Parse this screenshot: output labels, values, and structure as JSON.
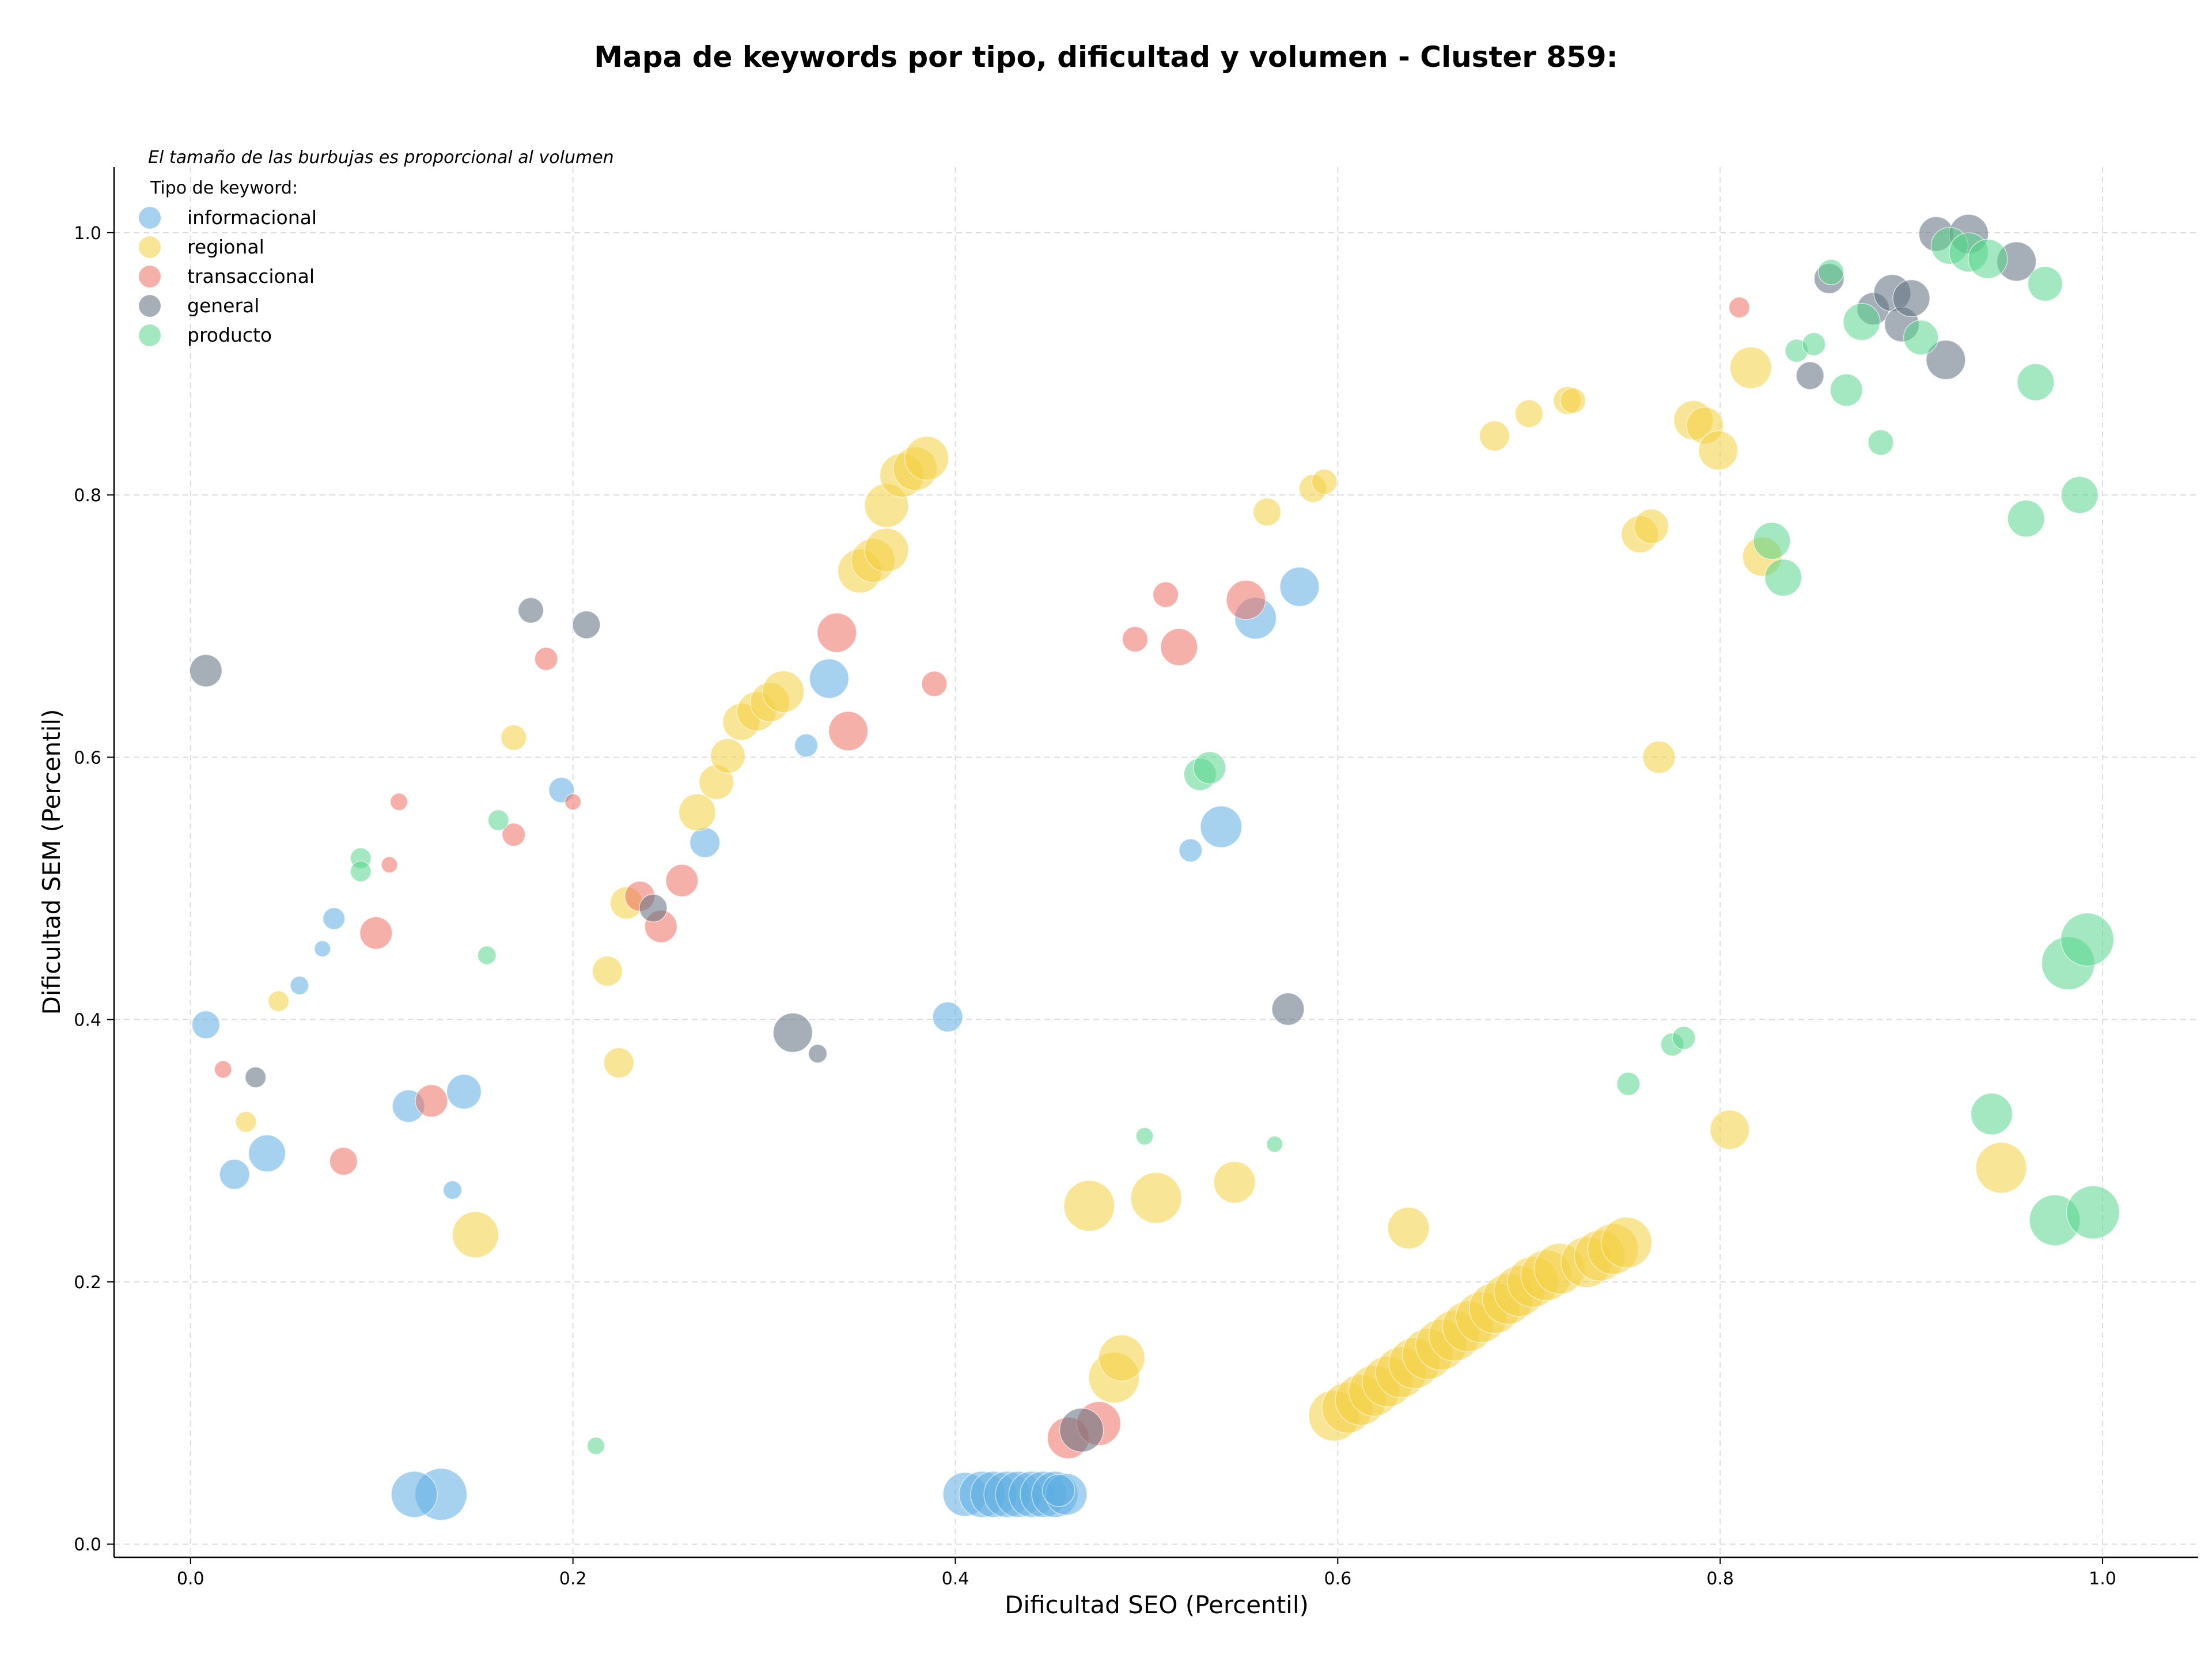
{
  "chart_data": {
    "type": "scatter",
    "title": "Mapa de keywords por tipo, dificultad y volumen - Cluster 859:",
    "xlabel": "Dificultad SEO (Percentil)",
    "ylabel": "Dificultad SEM (Percentil)",
    "xlim": [
      -0.04,
      1.05
    ],
    "ylim": [
      -0.01,
      1.05
    ],
    "xticks": [
      "0.0",
      "0.2",
      "0.4",
      "0.6",
      "0.8",
      "1.0"
    ],
    "yticks": [
      "0.0",
      "0.2",
      "0.4",
      "0.6",
      "0.8",
      "1.0"
    ],
    "grid": true,
    "legend_position": "top-left",
    "size_note": "El tamaño de las burbujas es proporcional al volumen",
    "legend_title": "Tipo de keyword:",
    "series": [
      {
        "name": "informacional",
        "color": "#5DADE2",
        "points": [
          [
            0.008,
            0.396,
            24
          ],
          [
            0.023,
            0.282,
            26
          ],
          [
            0.04,
            0.298,
            32
          ],
          [
            0.057,
            0.426,
            16
          ],
          [
            0.069,
            0.454,
            14
          ],
          [
            0.075,
            0.477,
            19
          ],
          [
            0.114,
            0.334,
            28
          ],
          [
            0.131,
            0.038,
            45
          ],
          [
            0.117,
            0.038,
            40
          ],
          [
            0.143,
            0.345,
            30
          ],
          [
            0.137,
            0.27,
            16
          ],
          [
            0.194,
            0.575,
            22
          ],
          [
            0.269,
            0.535,
            26
          ],
          [
            0.322,
            0.609,
            20
          ],
          [
            0.334,
            0.66,
            34
          ],
          [
            0.396,
            0.402,
            26
          ],
          [
            0.405,
            0.038,
            38
          ],
          [
            0.414,
            0.038,
            40
          ],
          [
            0.42,
            0.038,
            40
          ],
          [
            0.427,
            0.038,
            40
          ],
          [
            0.433,
            0.038,
            40
          ],
          [
            0.44,
            0.038,
            40
          ],
          [
            0.446,
            0.038,
            40
          ],
          [
            0.452,
            0.038,
            40
          ],
          [
            0.458,
            0.038,
            36
          ],
          [
            0.454,
            0.041,
            28
          ],
          [
            0.523,
            0.529,
            20
          ],
          [
            0.539,
            0.547,
            36
          ],
          [
            0.557,
            0.706,
            36
          ],
          [
            0.58,
            0.73,
            34
          ]
        ]
      },
      {
        "name": "regional",
        "color": "#F4D03F",
        "points": [
          [
            0.029,
            0.322,
            18
          ],
          [
            0.046,
            0.414,
            18
          ],
          [
            0.149,
            0.236,
            40
          ],
          [
            0.169,
            0.615,
            22
          ],
          [
            0.218,
            0.437,
            26
          ],
          [
            0.224,
            0.367,
            26
          ],
          [
            0.228,
            0.489,
            28
          ],
          [
            0.265,
            0.558,
            32
          ],
          [
            0.275,
            0.581,
            30
          ],
          [
            0.281,
            0.601,
            30
          ],
          [
            0.288,
            0.627,
            32
          ],
          [
            0.296,
            0.635,
            34
          ],
          [
            0.303,
            0.642,
            34
          ],
          [
            0.31,
            0.65,
            36
          ],
          [
            0.35,
            0.742,
            38
          ],
          [
            0.357,
            0.75,
            38
          ],
          [
            0.364,
            0.758,
            38
          ],
          [
            0.364,
            0.792,
            38
          ],
          [
            0.372,
            0.815,
            38
          ],
          [
            0.379,
            0.82,
            38
          ],
          [
            0.385,
            0.828,
            38
          ],
          [
            0.47,
            0.258,
            44
          ],
          [
            0.483,
            0.127,
            44
          ],
          [
            0.487,
            0.142,
            40
          ],
          [
            0.505,
            0.264,
            44
          ],
          [
            0.546,
            0.276,
            36
          ],
          [
            0.563,
            0.787,
            24
          ],
          [
            0.587,
            0.805,
            24
          ],
          [
            0.593,
            0.81,
            22
          ],
          [
            0.598,
            0.098,
            44
          ],
          [
            0.605,
            0.104,
            44
          ],
          [
            0.612,
            0.11,
            44
          ],
          [
            0.619,
            0.117,
            44
          ],
          [
            0.626,
            0.124,
            44
          ],
          [
            0.633,
            0.131,
            44
          ],
          [
            0.637,
            0.241,
            36
          ],
          [
            0.64,
            0.138,
            44
          ],
          [
            0.647,
            0.145,
            44
          ],
          [
            0.654,
            0.152,
            44
          ],
          [
            0.661,
            0.159,
            44
          ],
          [
            0.668,
            0.166,
            44
          ],
          [
            0.675,
            0.173,
            44
          ],
          [
            0.682,
            0.18,
            44
          ],
          [
            0.689,
            0.187,
            44
          ],
          [
            0.695,
            0.193,
            44
          ],
          [
            0.702,
            0.2,
            44
          ],
          [
            0.709,
            0.205,
            44
          ],
          [
            0.716,
            0.21,
            44
          ],
          [
            0.682,
            0.845,
            26
          ],
          [
            0.7,
            0.862,
            24
          ],
          [
            0.72,
            0.872,
            24
          ],
          [
            0.723,
            0.872,
            22
          ],
          [
            0.73,
            0.215,
            44
          ],
          [
            0.737,
            0.22,
            44
          ],
          [
            0.744,
            0.225,
            44
          ],
          [
            0.751,
            0.23,
            44
          ],
          [
            0.758,
            0.77,
            32
          ],
          [
            0.764,
            0.776,
            30
          ],
          [
            0.768,
            0.6,
            28
          ],
          [
            0.786,
            0.857,
            34
          ],
          [
            0.792,
            0.853,
            32
          ],
          [
            0.799,
            0.834,
            34
          ],
          [
            0.805,
            0.316,
            34
          ],
          [
            0.816,
            0.897,
            36
          ],
          [
            0.822,
            0.753,
            34
          ],
          [
            0.947,
            0.287,
            44
          ]
        ]
      },
      {
        "name": "transaccional",
        "color": "#EC7063",
        "points": [
          [
            0.017,
            0.362,
            15
          ],
          [
            0.08,
            0.292,
            24
          ],
          [
            0.097,
            0.466,
            28
          ],
          [
            0.104,
            0.518,
            14
          ],
          [
            0.109,
            0.566,
            15
          ],
          [
            0.126,
            0.338,
            28
          ],
          [
            0.169,
            0.541,
            20
          ],
          [
            0.186,
            0.675,
            20
          ],
          [
            0.2,
            0.566,
            14
          ],
          [
            0.235,
            0.494,
            26
          ],
          [
            0.246,
            0.471,
            28
          ],
          [
            0.257,
            0.506,
            28
          ],
          [
            0.338,
            0.695,
            34
          ],
          [
            0.344,
            0.62,
            34
          ],
          [
            0.389,
            0.656,
            22
          ],
          [
            0.459,
            0.081,
            36
          ],
          [
            0.475,
            0.092,
            38
          ],
          [
            0.494,
            0.69,
            22
          ],
          [
            0.51,
            0.724,
            22
          ],
          [
            0.517,
            0.684,
            32
          ],
          [
            0.552,
            0.72,
            34
          ],
          [
            0.81,
            0.943,
            18
          ]
        ]
      },
      {
        "name": "general",
        "color": "#5D6D7E",
        "points": [
          [
            0.008,
            0.666,
            28
          ],
          [
            0.034,
            0.356,
            18
          ],
          [
            0.178,
            0.712,
            22
          ],
          [
            0.207,
            0.701,
            24
          ],
          [
            0.242,
            0.485,
            24
          ],
          [
            0.315,
            0.39,
            34
          ],
          [
            0.328,
            0.374,
            16
          ],
          [
            0.466,
            0.087,
            38
          ],
          [
            0.574,
            0.408,
            28
          ],
          [
            0.847,
            0.891,
            24
          ],
          [
            0.857,
            0.965,
            26
          ],
          [
            0.88,
            0.942,
            28
          ],
          [
            0.89,
            0.954,
            32
          ],
          [
            0.895,
            0.93,
            30
          ],
          [
            0.9,
            0.95,
            32
          ],
          [
            0.913,
            0.999,
            30
          ],
          [
            0.918,
            0.903,
            34
          ],
          [
            0.93,
            0.999,
            34
          ],
          [
            0.955,
            0.978,
            34
          ]
        ]
      },
      {
        "name": "producto",
        "color": "#58D68D",
        "points": [
          [
            0.089,
            0.523,
            18
          ],
          [
            0.089,
            0.513,
            18
          ],
          [
            0.155,
            0.449,
            16
          ],
          [
            0.161,
            0.552,
            18
          ],
          [
            0.212,
            0.075,
            15
          ],
          [
            0.499,
            0.311,
            15
          ],
          [
            0.528,
            0.587,
            28
          ],
          [
            0.533,
            0.592,
            28
          ],
          [
            0.567,
            0.305,
            14
          ],
          [
            0.752,
            0.351,
            20
          ],
          [
            0.775,
            0.381,
            20
          ],
          [
            0.781,
            0.386,
            20
          ],
          [
            0.827,
            0.765,
            32
          ],
          [
            0.833,
            0.737,
            32
          ],
          [
            0.84,
            0.91,
            20
          ],
          [
            0.849,
            0.915,
            20
          ],
          [
            0.858,
            0.97,
            22
          ],
          [
            0.866,
            0.88,
            28
          ],
          [
            0.874,
            0.932,
            32
          ],
          [
            0.884,
            0.84,
            22
          ],
          [
            0.905,
            0.92,
            30
          ],
          [
            0.92,
            0.99,
            32
          ],
          [
            0.93,
            0.985,
            34
          ],
          [
            0.94,
            0.98,
            34
          ],
          [
            0.96,
            0.782,
            32
          ],
          [
            0.942,
            0.328,
            36
          ],
          [
            0.965,
            0.886,
            32
          ],
          [
            0.97,
            0.961,
            30
          ],
          [
            0.975,
            0.247,
            44
          ],
          [
            0.982,
            0.443,
            46
          ],
          [
            0.988,
            0.8,
            32
          ],
          [
            0.992,
            0.461,
            46
          ],
          [
            0.995,
            0.253,
            46
          ]
        ]
      }
    ]
  }
}
